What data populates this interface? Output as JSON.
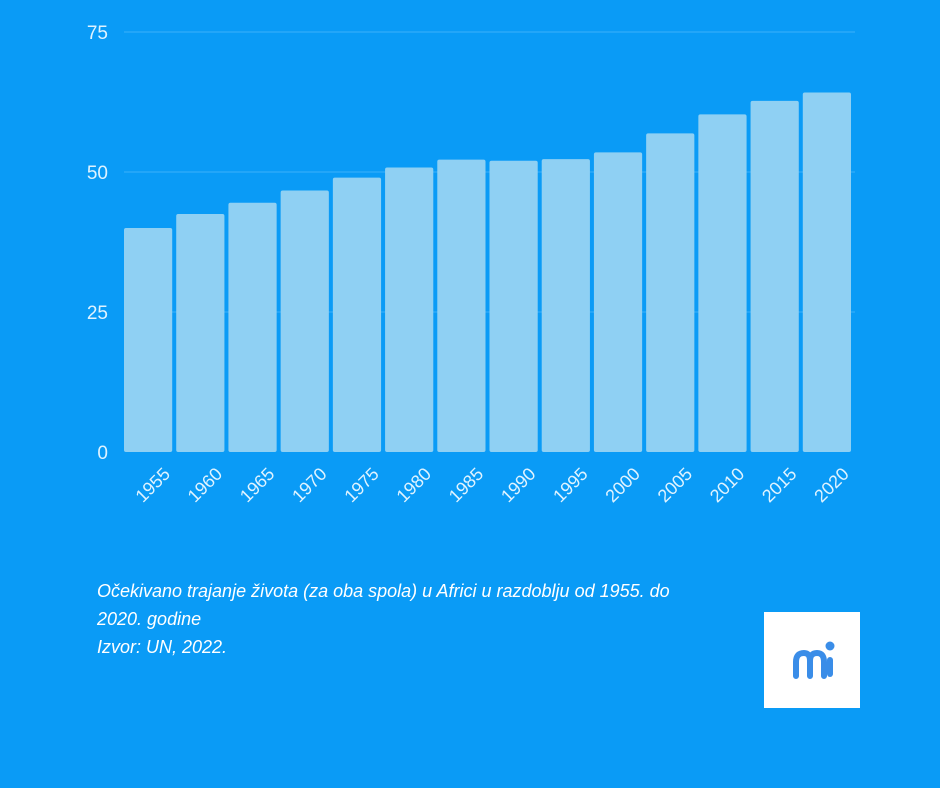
{
  "chart_data": {
    "type": "bar",
    "categories": [
      "1955",
      "1960",
      "1965",
      "1970",
      "1975",
      "1980",
      "1985",
      "1990",
      "1995",
      "2000",
      "2005",
      "2010",
      "2015",
      "2020"
    ],
    "values": [
      40.0,
      42.5,
      44.5,
      46.7,
      49.0,
      50.8,
      52.2,
      52.0,
      52.3,
      53.5,
      56.9,
      60.3,
      62.7,
      64.2
    ],
    "title": "",
    "xlabel": "",
    "ylabel": "",
    "ylim": [
      0,
      75
    ],
    "yticks": [
      "0",
      "25",
      "50",
      "75"
    ],
    "grid": true,
    "colors": {
      "bar": "#8fd0f3",
      "background": "#0a9bf6",
      "gridline": "#3cb2fb",
      "text": "#dff3ff"
    }
  },
  "caption": {
    "line1": "Očekivano trajanje života (za oba spola) u Africi u razdoblju od 1955. do",
    "line2": "2020. godine",
    "source": "Izvor: UN, 2022."
  },
  "logo": {
    "icon": "mi-logo",
    "text": "mi",
    "color": "#3a8de8"
  }
}
